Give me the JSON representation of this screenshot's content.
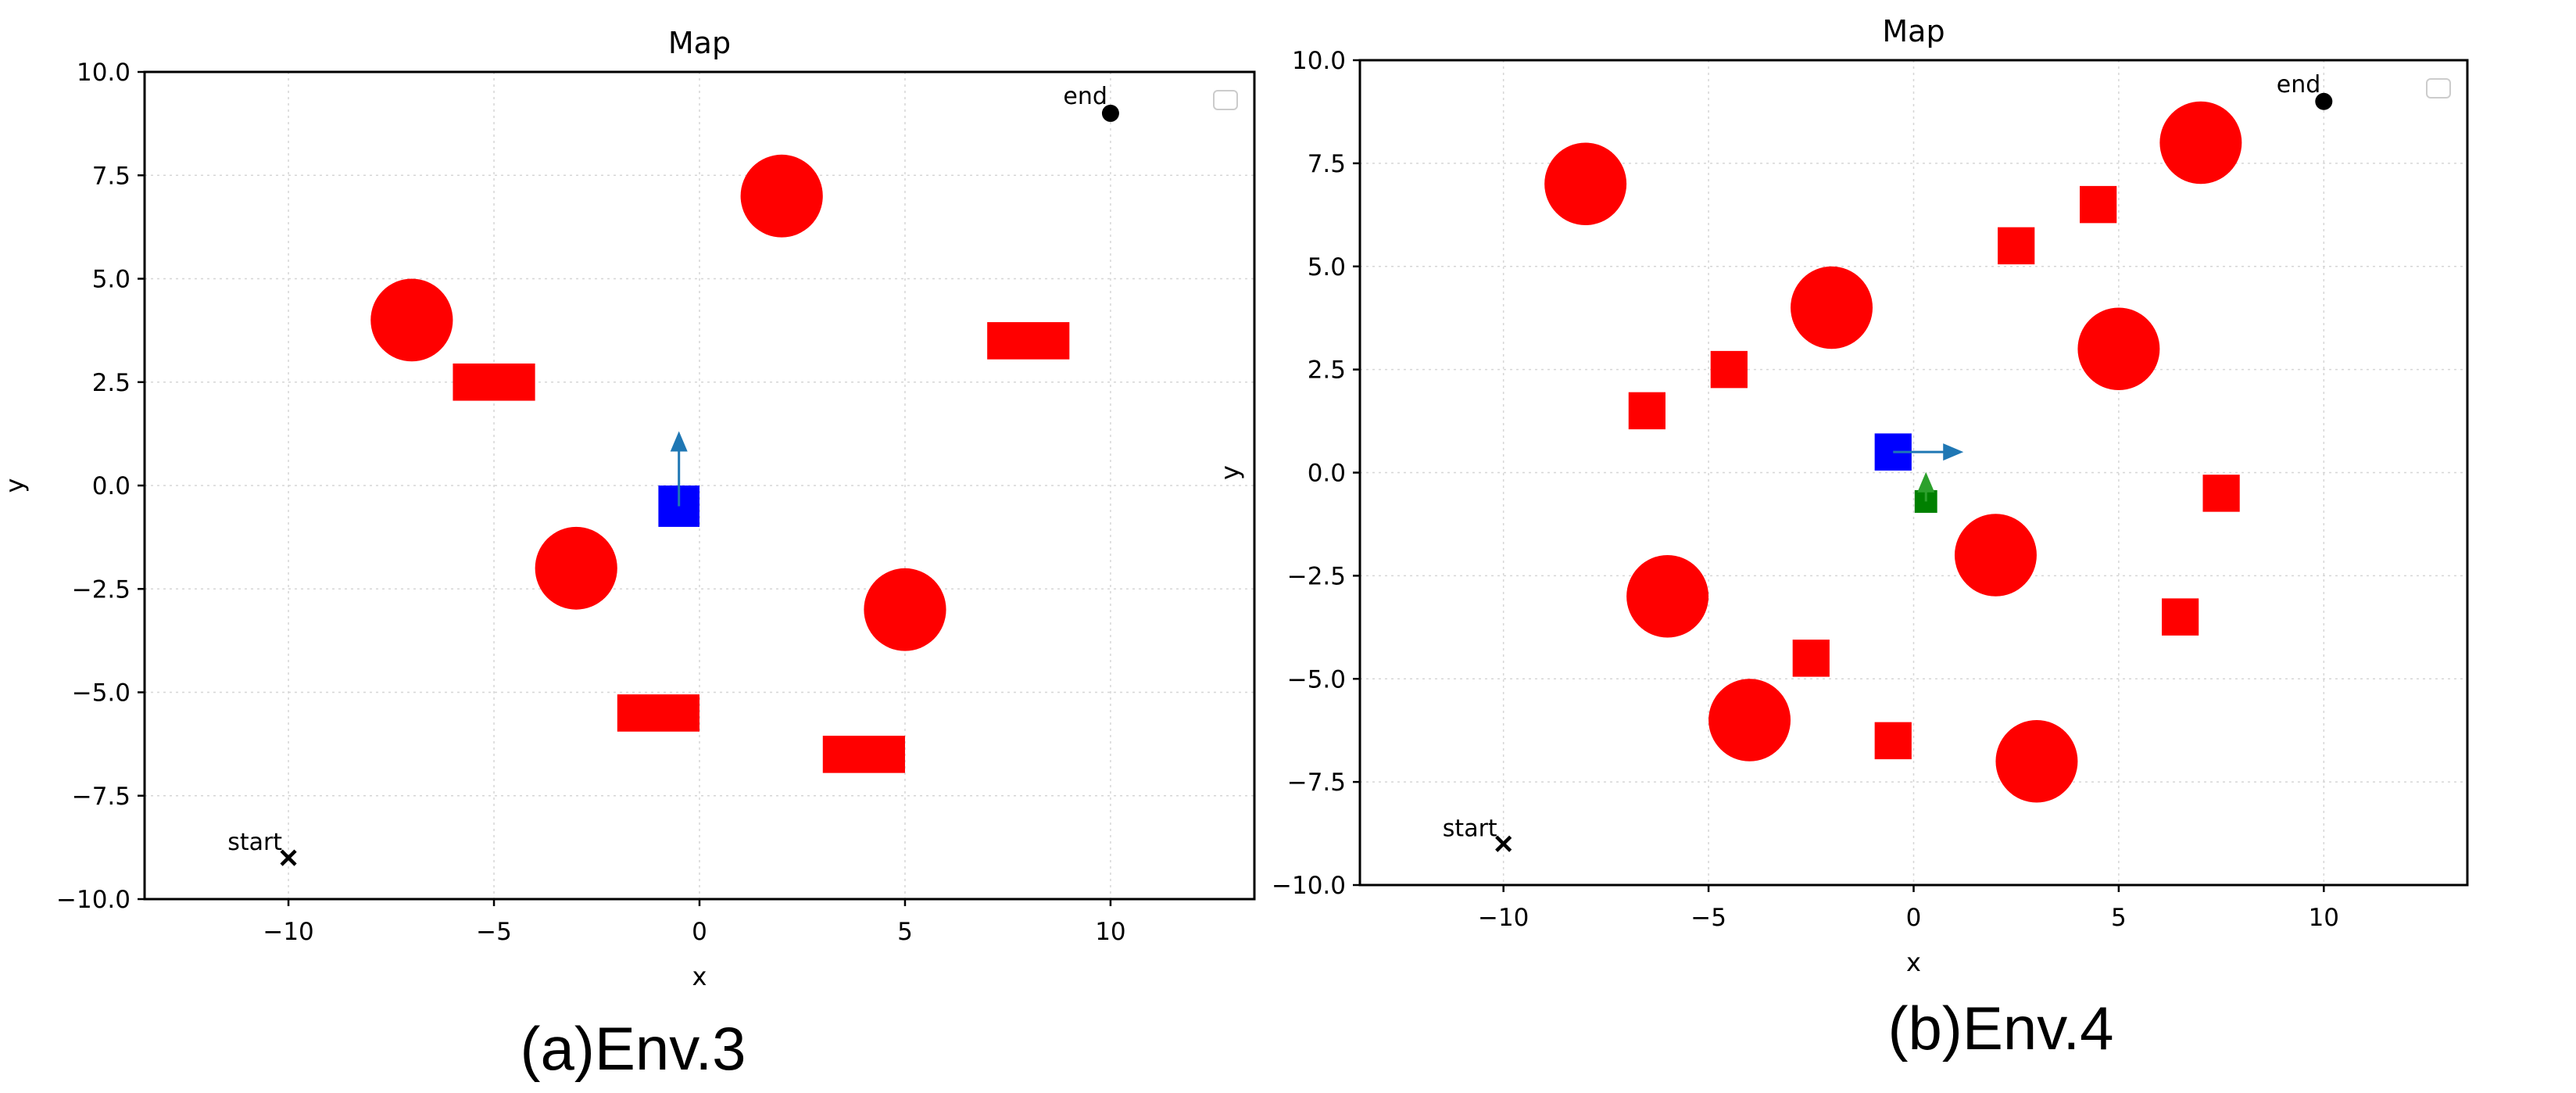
{
  "chart_data": [
    {
      "type": "scatter",
      "title": "Map",
      "xlabel": "x",
      "ylabel": "y",
      "xlim": [
        -13.5,
        13.5
      ],
      "ylim": [
        -10,
        10
      ],
      "xticks": [
        -10,
        -5,
        0,
        5,
        10
      ],
      "xtick_labels": [
        "−10",
        "−5",
        "0",
        "5",
        "10"
      ],
      "yticks": [
        -10,
        -7.5,
        -5,
        -2.5,
        0,
        2.5,
        5,
        7.5,
        10
      ],
      "ytick_labels": [
        "−10.0",
        "−7.5",
        "−5.0",
        "−2.5",
        "0.0",
        "2.5",
        "5.0",
        "7.5",
        "10.0"
      ],
      "grid": true,
      "legend": "top-right (empty)",
      "caption": "(a)Env.3",
      "start": {
        "x": -10,
        "y": -9,
        "label": "start",
        "color": "#000000"
      },
      "end": {
        "x": 10,
        "y": 9,
        "label": "end",
        "color": "#000000"
      },
      "obstacle_color": "#ff0000",
      "circle_obstacles": [
        {
          "x": 2,
          "y": 7,
          "r": 1
        },
        {
          "x": -7,
          "y": 4,
          "r": 1
        },
        {
          "x": -3,
          "y": -2,
          "r": 1
        },
        {
          "x": 5,
          "y": -3,
          "r": 1
        }
      ],
      "rect_obstacles": [
        {
          "x": -5,
          "y": 2.5,
          "w": 2,
          "h": 0.9
        },
        {
          "x": 8,
          "y": 3.5,
          "w": 2,
          "h": 0.9
        },
        {
          "x": -1,
          "y": -5.5,
          "w": 2,
          "h": 0.9
        },
        {
          "x": 4,
          "y": -6.5,
          "w": 2,
          "h": 0.9
        }
      ],
      "agents": [
        {
          "x": -0.5,
          "y": -0.5,
          "size": 1,
          "color": "#0000ff",
          "arrow": {
            "dx": 0,
            "dy": 1.7,
            "color": "#1f77b4"
          }
        }
      ]
    },
    {
      "type": "scatter",
      "title": "Map",
      "xlabel": "x",
      "ylabel": "y",
      "xlim": [
        -13.5,
        13.5
      ],
      "ylim": [
        -10,
        10
      ],
      "xticks": [
        -10,
        -5,
        0,
        5,
        10
      ],
      "xtick_labels": [
        "−10",
        "−5",
        "0",
        "5",
        "10"
      ],
      "yticks": [
        -10,
        -7.5,
        -5,
        -2.5,
        0,
        2.5,
        5,
        7.5,
        10
      ],
      "ytick_labels": [
        "−10.0",
        "−7.5",
        "−5.0",
        "−2.5",
        "0.0",
        "2.5",
        "5.0",
        "7.5",
        "10.0"
      ],
      "grid": true,
      "legend": "top-right (empty)",
      "caption": "(b)Env.4",
      "start": {
        "x": -10,
        "y": -9,
        "label": "start",
        "color": "#000000"
      },
      "end": {
        "x": 10,
        "y": 9,
        "label": "end",
        "color": "#000000"
      },
      "obstacle_color": "#ff0000",
      "circle_obstacles": [
        {
          "x": -8,
          "y": 7,
          "r": 1
        },
        {
          "x": 7,
          "y": 8,
          "r": 1
        },
        {
          "x": -2,
          "y": 4,
          "r": 1
        },
        {
          "x": 5,
          "y": 3,
          "r": 1
        },
        {
          "x": 2,
          "y": -2,
          "r": 1
        },
        {
          "x": -6,
          "y": -3,
          "r": 1
        },
        {
          "x": -4,
          "y": -6,
          "r": 1
        },
        {
          "x": 3,
          "y": -7,
          "r": 1
        }
      ],
      "rect_obstacles": [
        {
          "x": 4.5,
          "y": 6.5,
          "w": 0.9,
          "h": 0.9
        },
        {
          "x": 2.5,
          "y": 5.5,
          "w": 0.9,
          "h": 0.9
        },
        {
          "x": -4.5,
          "y": 2.5,
          "w": 0.9,
          "h": 0.9
        },
        {
          "x": -6.5,
          "y": 1.5,
          "w": 0.9,
          "h": 0.9
        },
        {
          "x": 7.5,
          "y": -0.5,
          "w": 0.9,
          "h": 0.9
        },
        {
          "x": 6.5,
          "y": -3.5,
          "w": 0.9,
          "h": 0.9
        },
        {
          "x": -2.5,
          "y": -4.5,
          "w": 0.9,
          "h": 0.9
        },
        {
          "x": -0.5,
          "y": -6.5,
          "w": 0.9,
          "h": 0.9
        }
      ],
      "agents": [
        {
          "x": -0.5,
          "y": 0.5,
          "size": 0.9,
          "color": "#0000ff",
          "arrow": {
            "dx": 1.6,
            "dy": 0,
            "color": "#1f77b4"
          }
        },
        {
          "x": 0.3,
          "y": -0.7,
          "size": 0.55,
          "color": "#008000",
          "arrow": {
            "dx": 0,
            "dy": 0.6,
            "color": "#2ca02c"
          }
        }
      ]
    }
  ]
}
